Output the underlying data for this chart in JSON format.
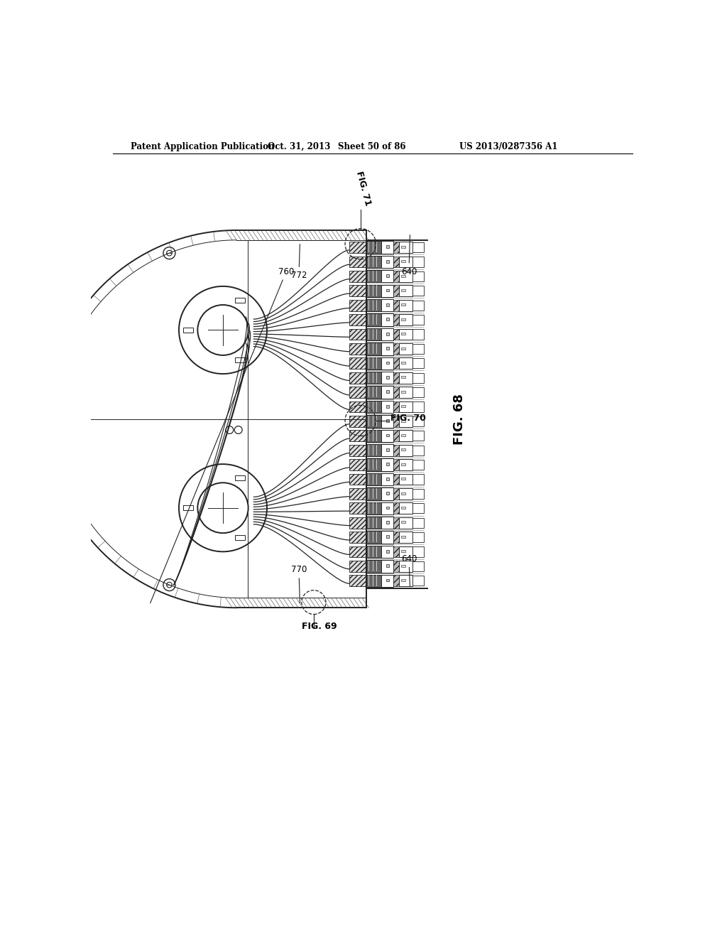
{
  "bg_color": "#ffffff",
  "header_text": "Patent Application Publication",
  "header_date": "Oct. 31, 2013",
  "header_sheet": "Sheet 50 of 86",
  "header_patent": "US 2013/0287356 A1",
  "fig_label": "FIG. 68",
  "fig71_label": "FIG. 71",
  "fig70_label": "FIG. 70",
  "fig69_label": "FIG. 69",
  "gray": "#222222",
  "light_gray": "#aaaaaa",
  "hatch_gray": "#555555"
}
